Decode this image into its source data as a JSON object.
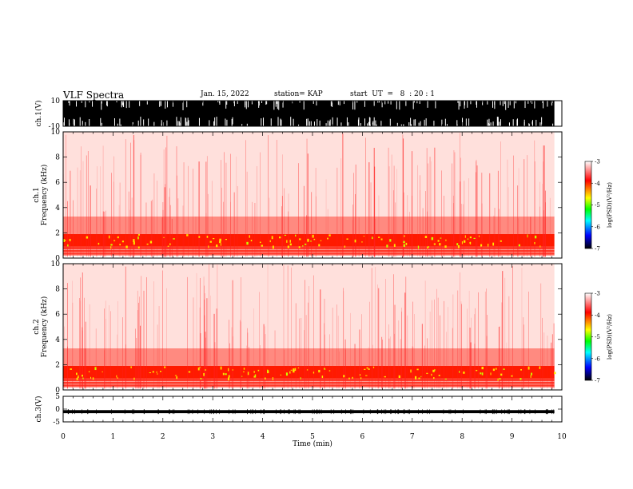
{
  "header": {
    "title": "VLF Spectra",
    "date": "Jan. 15, 2022",
    "station": "station= KAP",
    "start": "start  UT  =   8  : 20 : 1"
  },
  "chart_data": [
    {
      "type": "line",
      "panel": "ch.1 waveform",
      "ylabel": "ch.1(V)",
      "ylim": [
        -10,
        10
      ],
      "y_ticks": [
        "10",
        "-10"
      ],
      "xlim": [
        0,
        10
      ],
      "data_end_min": 9.85,
      "amplitude_envelope": [
        -10,
        10
      ],
      "color": "#000000"
    },
    {
      "type": "heatmap",
      "panel": "ch.1 spectrogram",
      "ylabel_line1": "ch.1",
      "ylabel_line2": "Frequency  (kHz)",
      "ylim": [
        0,
        10
      ],
      "y_ticks": [
        "0",
        "2",
        "4",
        "6",
        "8",
        "10"
      ],
      "xlim": [
        0,
        10
      ],
      "data_end_min": 9.85,
      "colorbar": {
        "label": "log(PSD)(V²/Hz)",
        "range": [
          -7,
          -3
        ],
        "ticks": [
          "-3",
          "-4",
          "-5",
          "-6",
          "-7"
        ],
        "colors": [
          "#ffffff",
          "#ff0000",
          "#ffff00",
          "#00ff00",
          "#00ffff",
          "#0000ff",
          "#000000"
        ]
      },
      "bands": [
        {
          "f_low": 0.2,
          "f_high": 0.9,
          "intensity": "high"
        },
        {
          "f_low": 0.9,
          "f_high": 1.9,
          "intensity": "very high"
        },
        {
          "f_low": 1.9,
          "f_high": 3.3,
          "intensity": "medium"
        },
        {
          "f_low": 3.3,
          "f_high": 10,
          "intensity": "low"
        }
      ]
    },
    {
      "type": "heatmap",
      "panel": "ch.2 spectrogram",
      "ylabel_line1": "ch.2",
      "ylabel_line2": "Frequency  (kHz)",
      "ylim": [
        0,
        10
      ],
      "y_ticks": [
        "0",
        "2",
        "4",
        "6",
        "8",
        "10"
      ],
      "xlim": [
        0,
        10
      ],
      "data_end_min": 9.85,
      "colorbar": {
        "label": "log(PSD)(V²/Hz)",
        "range": [
          -7,
          -3
        ],
        "ticks": [
          "-3",
          "-4",
          "-5",
          "-6",
          "-7"
        ],
        "colors": [
          "#ffffff",
          "#ff0000",
          "#ffff00",
          "#00ff00",
          "#00ffff",
          "#0000ff",
          "#000000"
        ]
      },
      "bands": [
        {
          "f_low": 0.2,
          "f_high": 0.9,
          "intensity": "high"
        },
        {
          "f_low": 0.9,
          "f_high": 1.9,
          "intensity": "very high"
        },
        {
          "f_low": 1.9,
          "f_high": 3.3,
          "intensity": "medium"
        },
        {
          "f_low": 3.3,
          "f_high": 10,
          "intensity": "low"
        }
      ]
    },
    {
      "type": "line",
      "panel": "ch.3 waveform",
      "ylabel": "ch.3(V)",
      "ylim": [
        -5,
        5
      ],
      "y_ticks": [
        "5",
        "0",
        "-5"
      ],
      "xlim": [
        0,
        10
      ],
      "data_end_min": 9.85,
      "mean": -1.0,
      "amplitude_envelope": [
        -1.6,
        -0.4
      ],
      "color": "#000000"
    }
  ],
  "x_axis": {
    "label": "Time  (min)",
    "ticks": [
      "0",
      "1",
      "2",
      "3",
      "4",
      "5",
      "6",
      "7",
      "8",
      "9",
      "10"
    ]
  }
}
